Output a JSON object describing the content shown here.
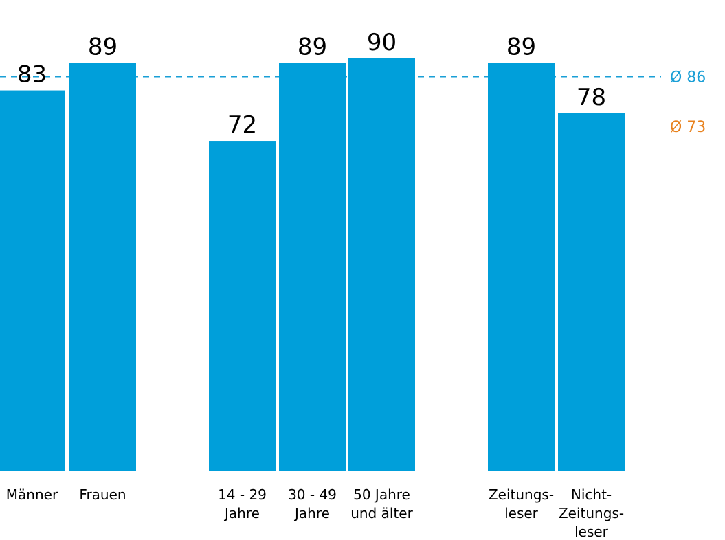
{
  "chart_data": {
    "type": "bar",
    "categories": [
      [
        "Männer"
      ],
      [
        "Frauen"
      ],
      [
        "14 - 29",
        "Jahre"
      ],
      [
        "30 - 49",
        "Jahre"
      ],
      [
        "50 Jahre",
        "und älter"
      ],
      [
        "Zeitungs-",
        "leser"
      ],
      [
        "Nicht-",
        "Zeitungs-",
        "leser"
      ]
    ],
    "values": [
      83,
      89,
      72,
      89,
      90,
      89,
      78
    ],
    "value_labels": [
      "83",
      "89",
      "72",
      "89",
      "90",
      "89",
      "78"
    ],
    "ylim": [
      0,
      100
    ],
    "grid": false,
    "reference_lines": [
      {
        "label": "Ø 86",
        "value": 86,
        "style": "dashed",
        "color": "#1a9fd6"
      },
      {
        "label": "Ø 73",
        "value": 73,
        "style": "none",
        "color": "#e8821e"
      }
    ],
    "bar_color": "#009fda",
    "title": "",
    "xlabel": "",
    "ylabel": ""
  }
}
